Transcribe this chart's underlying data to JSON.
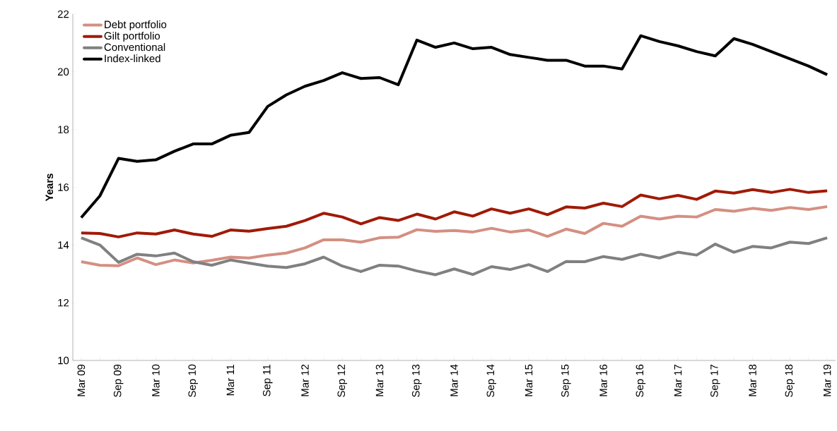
{
  "chart_data": {
    "type": "line",
    "ylabel": "Years",
    "categories": [
      "Mar 09",
      null,
      "Sep 09",
      null,
      "Mar 10",
      null,
      "Sep 10",
      null,
      "Mar 11",
      null,
      "Sep 11",
      null,
      "Mar 12",
      null,
      "Sep 12",
      null,
      "Mar 13",
      null,
      "Sep 13",
      null,
      "Mar 14",
      null,
      "Sep 14",
      null,
      "Mar 15",
      null,
      "Sep 15",
      null,
      "Mar 16",
      null,
      "Sep 16",
      null,
      "Mar 17",
      null,
      "Sep 17",
      null,
      "Mar 18",
      null,
      "Sep 18",
      null,
      "Mar 19"
    ],
    "series": [
      {
        "name": "Debt portfolio",
        "color": "#d48f82",
        "values": [
          13.42,
          13.3,
          13.28,
          13.55,
          13.32,
          13.48,
          13.38,
          13.47,
          13.58,
          13.55,
          13.65,
          13.72,
          13.9,
          14.18,
          14.18,
          14.1,
          14.25,
          14.27,
          14.53,
          14.47,
          14.5,
          14.45,
          14.58,
          14.45,
          14.52,
          14.3,
          14.55,
          14.4,
          14.75,
          14.65,
          15.0,
          14.9,
          15.0,
          14.97,
          15.23,
          15.17,
          15.27,
          15.2,
          15.3,
          15.23,
          15.33
        ]
      },
      {
        "name": "Gilt portfolio",
        "color": "#a01a06",
        "values": [
          14.42,
          14.4,
          14.28,
          14.42,
          14.38,
          14.52,
          14.38,
          14.3,
          14.52,
          14.48,
          14.57,
          14.65,
          14.85,
          15.1,
          14.97,
          14.73,
          14.95,
          14.85,
          15.07,
          14.9,
          15.15,
          15.0,
          15.25,
          15.1,
          15.25,
          15.05,
          15.32,
          15.28,
          15.45,
          15.33,
          15.73,
          15.6,
          15.72,
          15.58,
          15.87,
          15.8,
          15.92,
          15.82,
          15.93,
          15.82,
          15.88
        ]
      },
      {
        "name": "Conventional",
        "color": "#808080",
        "values": [
          14.25,
          14.0,
          13.4,
          13.68,
          13.62,
          13.72,
          13.42,
          13.3,
          13.48,
          13.37,
          13.27,
          13.22,
          13.35,
          13.58,
          13.27,
          13.08,
          13.3,
          13.27,
          13.1,
          12.97,
          13.17,
          12.98,
          13.25,
          13.15,
          13.32,
          13.08,
          13.43,
          13.42,
          13.6,
          13.5,
          13.68,
          13.55,
          13.75,
          13.65,
          14.03,
          13.75,
          13.95,
          13.9,
          14.1,
          14.05,
          14.25
        ]
      },
      {
        "name": "Index-linked",
        "color": "#000000",
        "values": [
          14.95,
          15.7,
          17.0,
          16.9,
          16.95,
          17.25,
          17.5,
          17.5,
          17.8,
          17.9,
          18.8,
          19.2,
          19.5,
          19.7,
          19.97,
          19.77,
          19.8,
          19.55,
          21.1,
          20.85,
          21.0,
          20.8,
          20.85,
          20.6,
          20.5,
          20.4,
          20.4,
          20.2,
          20.2,
          20.1,
          21.25,
          21.05,
          20.9,
          20.7,
          20.55,
          21.15,
          20.95,
          20.7,
          20.45,
          20.2,
          19.9
        ]
      }
    ],
    "ylim": [
      10,
      22
    ],
    "yticks": [
      10,
      12,
      14,
      16,
      18,
      20,
      22
    ],
    "grid": false,
    "legend": "top left",
    "marker": "none",
    "line_style": "solid"
  }
}
